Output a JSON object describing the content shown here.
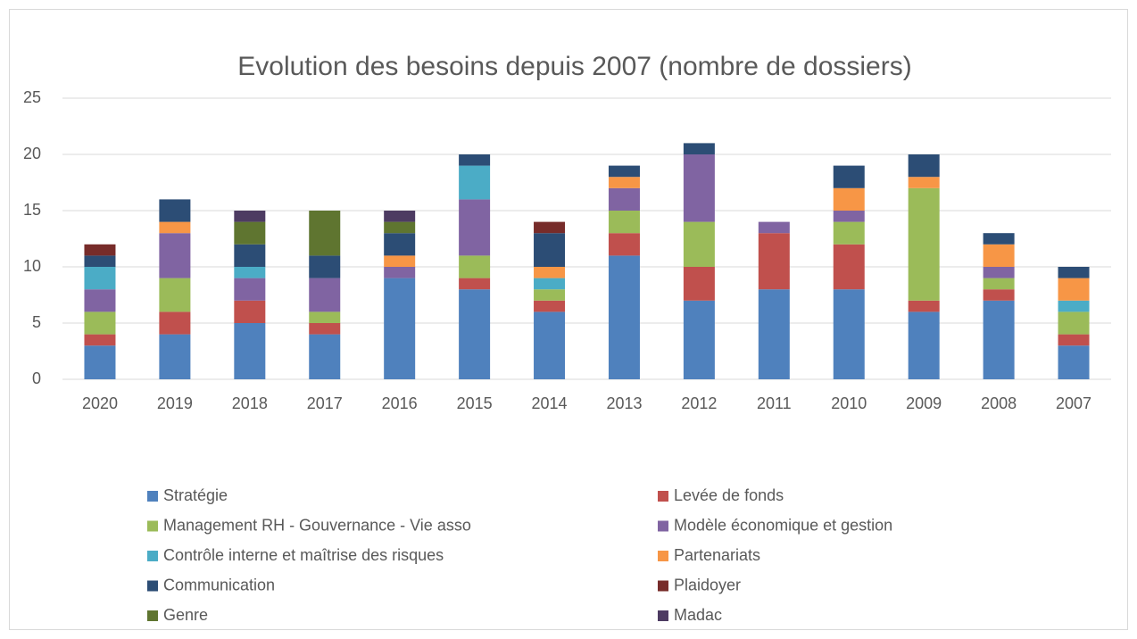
{
  "chart_data": {
    "type": "bar",
    "stacked": true,
    "title": "Evolution des besoins depuis 2007 (nombre de dossiers)",
    "categories": [
      "2020",
      "2019",
      "2018",
      "2017",
      "2016",
      "2015",
      "2014",
      "2013",
      "2012",
      "2011",
      "2010",
      "2009",
      "2008",
      "2007"
    ],
    "ylim": [
      0,
      25
    ],
    "yticks": [
      0,
      5,
      10,
      15,
      20,
      25
    ],
    "grid": true,
    "legend": "bottom",
    "series": [
      {
        "name": "Stratégie",
        "color": "#4f81bd",
        "values": [
          3,
          4,
          5,
          4,
          9,
          8,
          6,
          11,
          7,
          8,
          8,
          6,
          7,
          3
        ]
      },
      {
        "name": "Levée de fonds",
        "color": "#c0504d",
        "values": [
          1,
          2,
          2,
          1,
          0,
          1,
          1,
          2,
          3,
          5,
          4,
          1,
          1,
          1
        ]
      },
      {
        "name": "Management RH - Gouvernance - Vie asso",
        "color": "#9bbb59",
        "values": [
          2,
          3,
          0,
          1,
          0,
          2,
          1,
          2,
          4,
          0,
          2,
          10,
          1,
          2
        ]
      },
      {
        "name": "Modèle économique et gestion",
        "color": "#8064a2",
        "values": [
          2,
          4,
          2,
          3,
          1,
          5,
          0,
          2,
          6,
          1,
          1,
          0,
          1,
          0
        ]
      },
      {
        "name": "Contrôle interne et maîtrise des risques",
        "color": "#4bacc6",
        "values": [
          2,
          0,
          1,
          0,
          0,
          3,
          1,
          0,
          0,
          0,
          0,
          0,
          0,
          1
        ]
      },
      {
        "name": "Partenariats",
        "color": "#f79646",
        "values": [
          0,
          1,
          0,
          0,
          1,
          0,
          1,
          1,
          0,
          0,
          2,
          1,
          2,
          2
        ]
      },
      {
        "name": "Communication",
        "color": "#2c4d75",
        "values": [
          1,
          2,
          2,
          2,
          2,
          1,
          3,
          1,
          1,
          0,
          2,
          2,
          1,
          1
        ]
      },
      {
        "name": "Plaidoyer",
        "color": "#772c2a",
        "values": [
          1,
          0,
          0,
          0,
          0,
          0,
          1,
          0,
          0,
          0,
          0,
          0,
          0,
          0
        ]
      },
      {
        "name": "Genre",
        "color": "#5f7530",
        "values": [
          0,
          0,
          2,
          4,
          1,
          0,
          0,
          0,
          0,
          0,
          0,
          0,
          0,
          0
        ]
      },
      {
        "name": "Madac",
        "color": "#4d3b62",
        "values": [
          0,
          0,
          1,
          0,
          1,
          0,
          0,
          0,
          0,
          0,
          0,
          0,
          0,
          0
        ]
      }
    ]
  }
}
